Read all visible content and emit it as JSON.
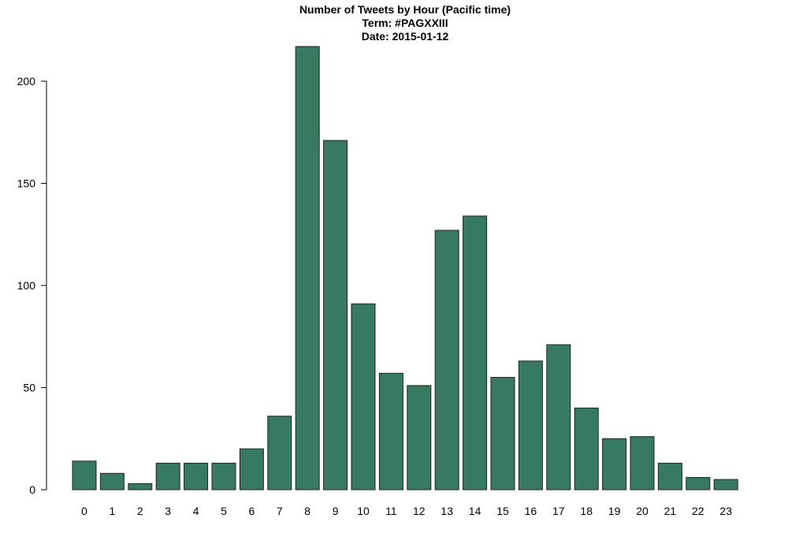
{
  "chart_data": {
    "type": "bar",
    "title": "Number of Tweets by Hour (Pacific time)",
    "subtitle_lines": [
      "Term: #PAGXXIII",
      "Date: 2015-01-12"
    ],
    "xlabel": "",
    "ylabel": "",
    "categories": [
      "0",
      "1",
      "2",
      "3",
      "4",
      "5",
      "6",
      "7",
      "8",
      "9",
      "10",
      "11",
      "12",
      "13",
      "14",
      "15",
      "16",
      "17",
      "18",
      "19",
      "20",
      "21",
      "22",
      "23"
    ],
    "values": [
      14,
      8,
      3,
      13,
      13,
      13,
      20,
      36,
      217,
      171,
      91,
      57,
      51,
      127,
      134,
      55,
      63,
      71,
      40,
      25,
      26,
      13,
      6,
      5
    ],
    "ylim": [
      0,
      217
    ],
    "yticks": [
      0,
      50,
      100,
      150,
      200
    ],
    "grid": false,
    "bar_color": "#367A62",
    "bar_edge_color": "#222222"
  }
}
